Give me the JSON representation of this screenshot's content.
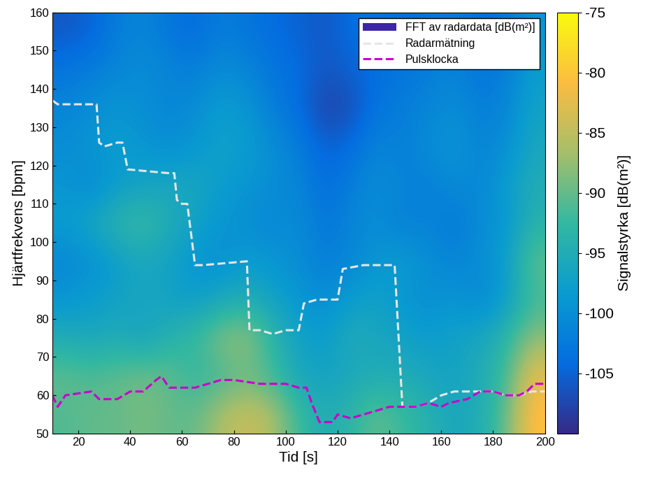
{
  "chart_data": {
    "type": "heatmap_lines",
    "x_label": "Tid [s]",
    "y_label": "Hjärtfrekvens [bpm]",
    "xlim": [
      10,
      200
    ],
    "xticks": [
      20,
      40,
      60,
      80,
      100,
      120,
      140,
      160,
      180,
      200
    ],
    "ylim": [
      50,
      160
    ],
    "yticks": [
      50,
      60,
      70,
      80,
      90,
      100,
      110,
      120,
      130,
      140,
      150,
      160
    ],
    "legend": "upper right",
    "heatmap": {
      "name": "FFT av radardata [dB(m²)]",
      "color": "#3e26a8",
      "x": [
        15,
        25,
        35,
        45,
        55,
        65,
        75,
        85,
        95,
        105,
        115,
        125,
        135,
        145,
        155,
        165,
        175,
        185,
        195
      ],
      "y": [
        55,
        65,
        75,
        85,
        95,
        105,
        115,
        125,
        135,
        145,
        155
      ],
      "values": [
        [
          -91,
          -90,
          -90,
          -89,
          -90,
          -90,
          -86,
          -84,
          -86,
          -92,
          -95,
          -93,
          -90,
          -92,
          -94,
          -96,
          -95,
          -90,
          -80
        ],
        [
          -90,
          -91,
          -90,
          -89,
          -90,
          -93,
          -92,
          -90,
          -92,
          -96,
          -97,
          -96,
          -95,
          -95,
          -96,
          -97,
          -95,
          -92,
          -82
        ],
        [
          -95,
          -96,
          -95,
          -97,
          -94,
          -92,
          -88,
          -87,
          -93,
          -97,
          -98,
          -95,
          -96,
          -97,
          -98,
          -97,
          -96,
          -93,
          -88
        ],
        [
          -99,
          -98,
          -97,
          -96,
          -97,
          -98,
          -96,
          -95,
          -97,
          -99,
          -100,
          -98,
          -97,
          -99,
          -100,
          -99,
          -101,
          -98,
          -92
        ],
        [
          -101,
          -100,
          -98,
          -96,
          -97,
          -99,
          -100,
          -98,
          -99,
          -100,
          -102,
          -101,
          -99,
          -98,
          -100,
          -101,
          -100,
          -98,
          -90
        ],
        [
          -98,
          -96,
          -93,
          -92,
          -95,
          -97,
          -99,
          -100,
          -101,
          -100,
          -103,
          -101,
          -100,
          -102,
          -101,
          -103,
          -100,
          -99,
          -94
        ],
        [
          -99,
          -101,
          -98,
          -97,
          -96,
          -96,
          -98,
          -99,
          -100,
          -101,
          -104,
          -102,
          -100,
          -101,
          -102,
          -100,
          -101,
          -98,
          -95
        ],
        [
          -100,
          -99,
          -98,
          -99,
          -100,
          -99,
          -97,
          -98,
          -100,
          -102,
          -105,
          -104,
          -101,
          -102,
          -100,
          -99,
          -101,
          -100,
          -96
        ],
        [
          -101,
          -100,
          -99,
          -100,
          -101,
          -100,
          -98,
          -99,
          -102,
          -104,
          -108,
          -107,
          -103,
          -102,
          -101,
          -100,
          -102,
          -101,
          -97
        ],
        [
          -103,
          -102,
          -101,
          -100,
          -101,
          -102,
          -100,
          -101,
          -103,
          -104,
          -106,
          -105,
          -104,
          -103,
          -102,
          -101,
          -103,
          -102,
          -98
        ],
        [
          -106,
          -105,
          -102,
          -101,
          -103,
          -104,
          -102,
          -103,
          -104,
          -105,
          -106,
          -104,
          -103,
          -104,
          -103,
          -102,
          -104,
          -103,
          -99
        ]
      ],
      "color_range": [
        -110,
        -75
      ],
      "color_ticks": [
        -105,
        -100,
        -95,
        -90,
        -85,
        -80,
        -75
      ],
      "color_label": "Signalstyrka [dB(m²)]"
    },
    "series": [
      {
        "name": "Radarmätning",
        "color": "#e6e6e6",
        "line_style": "dashed",
        "x": [
          10,
          12,
          27,
          28,
          30,
          35,
          37,
          39,
          55,
          57,
          58,
          60,
          62,
          65,
          68,
          85,
          86,
          90,
          95,
          100,
          105,
          107,
          112,
          120,
          122,
          130,
          142,
          145,
          150,
          155,
          160,
          165,
          180,
          185,
          190,
          195,
          200
        ],
        "values": [
          137,
          136,
          136,
          126,
          125,
          126,
          126,
          119,
          118,
          118,
          111,
          110,
          110,
          94,
          94,
          95,
          77,
          77,
          76,
          77,
          77,
          84,
          85,
          85,
          93,
          94,
          94,
          57,
          57,
          58,
          60,
          61,
          61,
          60,
          60,
          61,
          61
        ]
      },
      {
        "name": "Pulsklocka",
        "color": "#cc00cc",
        "line_style": "dashed",
        "x": [
          10,
          12,
          15,
          25,
          28,
          35,
          40,
          45,
          50,
          52,
          55,
          60,
          65,
          70,
          75,
          80,
          90,
          100,
          105,
          108,
          110,
          113,
          118,
          120,
          125,
          130,
          135,
          140,
          145,
          150,
          155,
          160,
          163,
          170,
          175,
          180,
          185,
          190,
          193,
          196,
          200
        ],
        "values": [
          60,
          57,
          60,
          61,
          59,
          59,
          61,
          61,
          64,
          65,
          62,
          62,
          62,
          63,
          64,
          64,
          63,
          63,
          62,
          62,
          58,
          53,
          53,
          55,
          54,
          55,
          56,
          57,
          57,
          57,
          58,
          57,
          58,
          59,
          61,
          61,
          60,
          60,
          61,
          63,
          63
        ]
      }
    ]
  }
}
